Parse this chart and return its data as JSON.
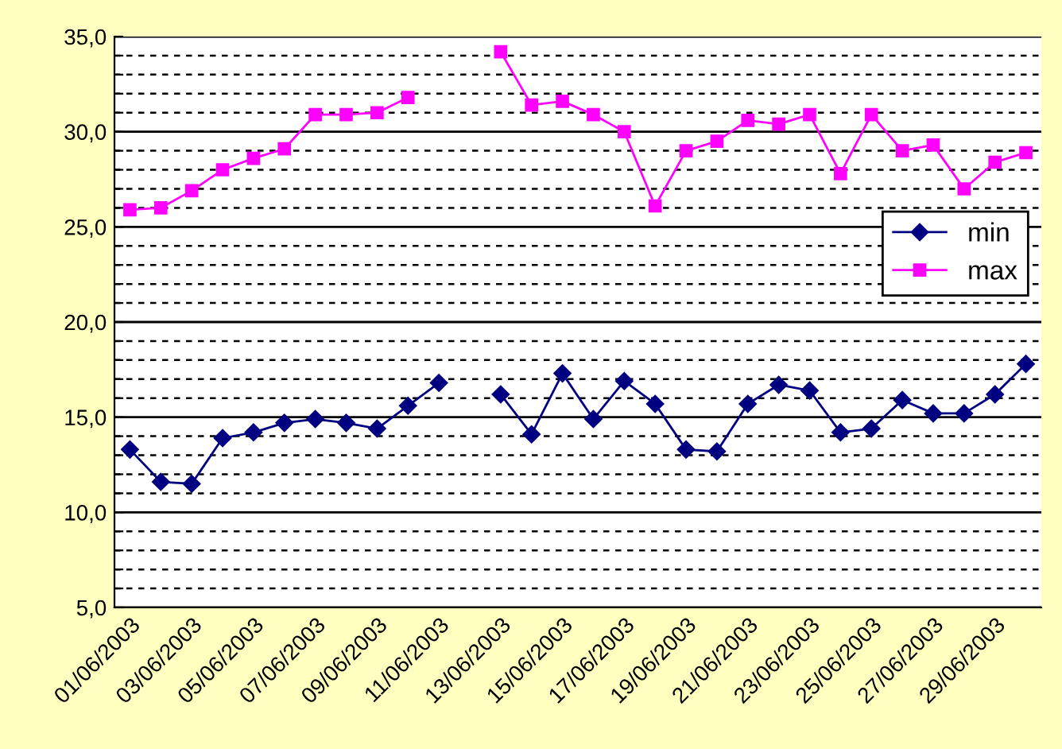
{
  "chart_data": {
    "type": "line",
    "categories": [
      "01/06/2003",
      null,
      "03/06/2003",
      null,
      "05/06/2003",
      null,
      "07/06/2003",
      null,
      "09/06/2003",
      null,
      "11/06/2003",
      null,
      "13/06/2003",
      null,
      "15/06/2003",
      null,
      "17/06/2003",
      null,
      "19/06/2003",
      null,
      "21/06/2003",
      null,
      "23/06/2003",
      null,
      "25/06/2003",
      null,
      "27/06/2003",
      null,
      "29/06/2003",
      null
    ],
    "series": [
      {
        "name": "min",
        "color": "#000080",
        "marker": "diamond",
        "values": [
          13.3,
          11.6,
          11.5,
          13.9,
          14.2,
          14.7,
          14.9,
          14.7,
          14.4,
          15.6,
          16.8,
          null,
          16.2,
          14.1,
          17.3,
          14.9,
          16.9,
          15.7,
          13.3,
          13.2,
          15.7,
          16.7,
          16.4,
          14.2,
          14.4,
          15.9,
          15.2,
          15.2,
          16.2,
          17.8
        ]
      },
      {
        "name": "max",
        "color": "#ff00ff",
        "marker": "square",
        "values": [
          25.9,
          26.0,
          26.9,
          28.0,
          28.6,
          29.1,
          30.9,
          30.9,
          31.0,
          31.8,
          null,
          null,
          34.2,
          31.4,
          31.6,
          30.9,
          30.0,
          26.1,
          29.0,
          29.5,
          30.6,
          30.4,
          30.9,
          27.8,
          30.9,
          29.0,
          29.3,
          27.0,
          28.4,
          28.9
        ]
      }
    ],
    "ylim": [
      5,
      35
    ],
    "yticks": [
      {
        "value": 5,
        "label": "5,0"
      },
      {
        "value": 6,
        "label": null
      },
      {
        "value": 7,
        "label": null
      },
      {
        "value": 8,
        "label": null
      },
      {
        "value": 9,
        "label": null
      },
      {
        "value": 10,
        "label": "10,0"
      },
      {
        "value": 11,
        "label": null
      },
      {
        "value": 12,
        "label": null
      },
      {
        "value": 13,
        "label": null
      },
      {
        "value": 14,
        "label": null
      },
      {
        "value": 15,
        "label": "15,0"
      },
      {
        "value": 16,
        "label": null
      },
      {
        "value": 17,
        "label": null
      },
      {
        "value": 18,
        "label": null
      },
      {
        "value": 19,
        "label": null
      },
      {
        "value": 20,
        "label": "20,0"
      },
      {
        "value": 21,
        "label": null
      },
      {
        "value": 22,
        "label": null
      },
      {
        "value": 23,
        "label": null
      },
      {
        "value": 24,
        "label": null
      },
      {
        "value": 25,
        "label": "25,0"
      },
      {
        "value": 26,
        "label": null
      },
      {
        "value": 27,
        "label": null
      },
      {
        "value": 28,
        "label": null
      },
      {
        "value": 29,
        "label": null
      },
      {
        "value": 30,
        "label": "30,0"
      },
      {
        "value": 31,
        "label": null
      },
      {
        "value": 32,
        "label": null
      },
      {
        "value": 33,
        "label": null
      },
      {
        "value": 34,
        "label": null
      },
      {
        "value": 35,
        "label": "35,0"
      }
    ],
    "grid": "y",
    "legend": "right",
    "line_style": "solid"
  }
}
